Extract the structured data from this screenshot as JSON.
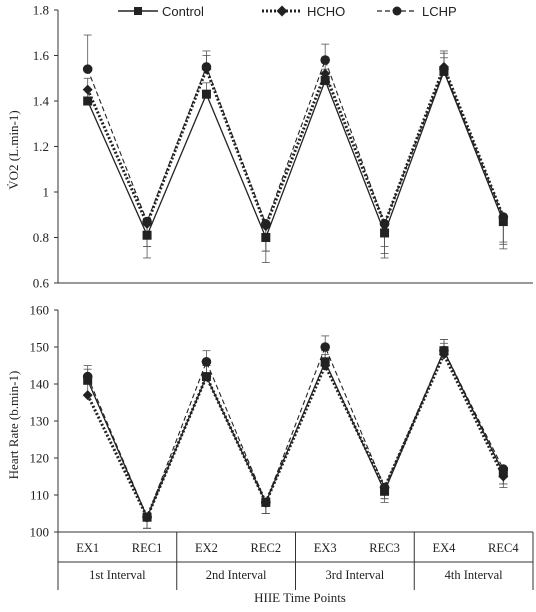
{
  "legend": [
    {
      "name": "Control",
      "marker": "square",
      "dash": "solid"
    },
    {
      "name": "HCHO",
      "marker": "diamond",
      "dash": "dotted-bold"
    },
    {
      "name": "LCHP",
      "marker": "circle",
      "dash": "dashed"
    }
  ],
  "x_title": "HIIE Time Points",
  "groups": [
    "1st Interval",
    "2nd Interval",
    "3rd Interval",
    "4th Interval"
  ],
  "chart_data": [
    {
      "type": "line",
      "ylabel": "V̇O2 (L.min-1)",
      "ylim": [
        0.6,
        1.8
      ],
      "yticks": [
        "0.6",
        "0.8",
        "1",
        "1.2",
        "1.4",
        "1.6",
        "1.8"
      ],
      "categories": [
        "EX1",
        "REC1",
        "EX2",
        "REC2",
        "EX3",
        "REC3",
        "EX4",
        "REC4"
      ],
      "series": [
        {
          "name": "Control",
          "values": [
            1.4,
            0.81,
            1.43,
            0.8,
            1.49,
            0.82,
            1.53,
            0.87
          ],
          "sd": [
            0.05,
            0.1,
            0.05,
            0.11,
            0.05,
            0.11,
            0.06,
            0.12
          ]
        },
        {
          "name": "HCHO",
          "values": [
            1.45,
            0.86,
            1.54,
            0.85,
            1.52,
            0.86,
            1.55,
            0.89
          ],
          "sd": [
            0.05,
            0.1,
            0.06,
            0.11,
            0.05,
            0.1,
            0.06,
            0.11
          ]
        },
        {
          "name": "LCHP",
          "values": [
            1.54,
            0.87,
            1.55,
            0.86,
            1.58,
            0.86,
            1.54,
            0.89
          ],
          "sd": [
            0.15,
            0.11,
            0.07,
            0.12,
            0.07,
            0.13,
            0.08,
            0.12
          ]
        }
      ]
    },
    {
      "type": "line",
      "ylabel": "Heart Rate (b.min-1)",
      "ylim": [
        100,
        160
      ],
      "yticks": [
        "100",
        "110",
        "120",
        "130",
        "140",
        "150",
        "160"
      ],
      "categories": [
        "EX1",
        "REC1",
        "EX2",
        "REC2",
        "EX3",
        "REC3",
        "EX4",
        "REC4"
      ],
      "series": [
        {
          "name": "Control",
          "values": [
            141,
            104,
            142,
            108,
            146,
            111,
            149,
            116
          ],
          "sd": [
            3,
            3,
            3,
            3,
            3,
            3,
            3,
            3
          ]
        },
        {
          "name": "HCHO",
          "values": [
            137,
            104,
            142,
            108,
            145,
            112,
            148,
            115
          ],
          "sd": [
            3,
            3,
            3,
            3,
            3,
            3,
            3,
            3
          ]
        },
        {
          "name": "LCHP",
          "values": [
            142,
            104,
            146,
            108,
            150,
            112,
            149,
            117
          ],
          "sd": [
            3,
            3,
            3,
            3,
            3,
            3,
            3,
            4
          ]
        }
      ]
    }
  ]
}
